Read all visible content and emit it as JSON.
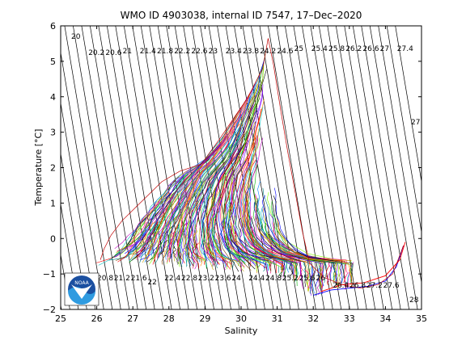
{
  "chart_data": {
    "type": "line",
    "title": "WMO ID 4903038, internal ID 7547, 17–Dec–2020",
    "xlabel": "Salinity",
    "ylabel": "Temperature [°C]",
    "xlim": [
      25,
      35
    ],
    "ylim": [
      -2,
      6
    ],
    "xticks": [
      "25",
      "26",
      "27",
      "28",
      "29",
      "30",
      "31",
      "32",
      "33",
      "34",
      "35"
    ],
    "yticks": [
      "−2",
      "−1",
      "0",
      "1",
      "2",
      "3",
      "4",
      "5",
      "6"
    ],
    "grid": false,
    "legend": "none",
    "density_isopleths": {
      "top_labels": [
        "20",
        "20.2",
        "20.6",
        "21",
        "21.4",
        "21.8",
        "22.2",
        "22.6",
        "23",
        "23.4",
        "23.8",
        "24.2",
        "24.6",
        "25",
        "25.4",
        "25.8",
        "26.2",
        "26.6",
        "27",
        "27.4"
      ],
      "right_labels": [
        "27",
        "28"
      ],
      "bottom_labels": [
        "20.8",
        "21.2",
        "21.6",
        "22",
        "22.4",
        "22.8",
        "23.2",
        "23.6",
        "24",
        "24.4",
        "24.8",
        "25.2",
        "25.6",
        "26",
        "26.4",
        "26.8",
        "27.2",
        "27.6"
      ]
    },
    "profiles_envelope": {
      "left_edge": [
        [
          26.1,
          -0.6
        ],
        [
          26.2,
          -0.3
        ],
        [
          26.4,
          0.1
        ],
        [
          26.7,
          0.5
        ],
        [
          27.0,
          0.8
        ],
        [
          27.4,
          1.2
        ],
        [
          27.8,
          1.6
        ],
        [
          28.3,
          1.9
        ],
        [
          28.9,
          2.1
        ],
        [
          29.4,
          2.8
        ],
        [
          29.8,
          3.4
        ],
        [
          30.2,
          4.0
        ],
        [
          30.6,
          4.8
        ],
        [
          30.75,
          5.65
        ]
      ],
      "right_edge": [
        [
          30.75,
          5.65
        ],
        [
          30.9,
          4.9
        ],
        [
          31.1,
          3.6
        ],
        [
          31.3,
          2.4
        ],
        [
          31.5,
          1.3
        ],
        [
          31.7,
          0.2
        ],
        [
          31.9,
          -0.7
        ],
        [
          32.3,
          -1.1
        ],
        [
          32.8,
          -1.3
        ],
        [
          33.3,
          -1.4
        ],
        [
          33.8,
          -1.3
        ],
        [
          34.2,
          -1.0
        ],
        [
          34.5,
          -0.2
        ]
      ],
      "bottom_edge": [
        [
          26.1,
          -0.6
        ],
        [
          26.5,
          -0.65
        ],
        [
          27.0,
          -0.7
        ],
        [
          27.5,
          -0.75
        ],
        [
          28.0,
          -0.8
        ],
        [
          28.5,
          -0.85
        ],
        [
          29.0,
          -0.9
        ],
        [
          29.5,
          -0.9
        ],
        [
          30.0,
          -0.95
        ],
        [
          30.5,
          -1.0
        ],
        [
          31.0,
          -1.05
        ],
        [
          31.5,
          -1.3
        ],
        [
          32.0,
          -1.7
        ],
        [
          32.5,
          -1.5
        ],
        [
          33.0,
          -1.45
        ]
      ]
    },
    "profile_colors": [
      "#ff0000",
      "#00b000",
      "#0000ff",
      "#00bfbf",
      "#bf00bf",
      "#c8a000",
      "#000000",
      "#ff8800",
      "#0080ff",
      "#80ff00",
      "#8000ff",
      "#ff0080",
      "#008080",
      "#804000"
    ]
  }
}
